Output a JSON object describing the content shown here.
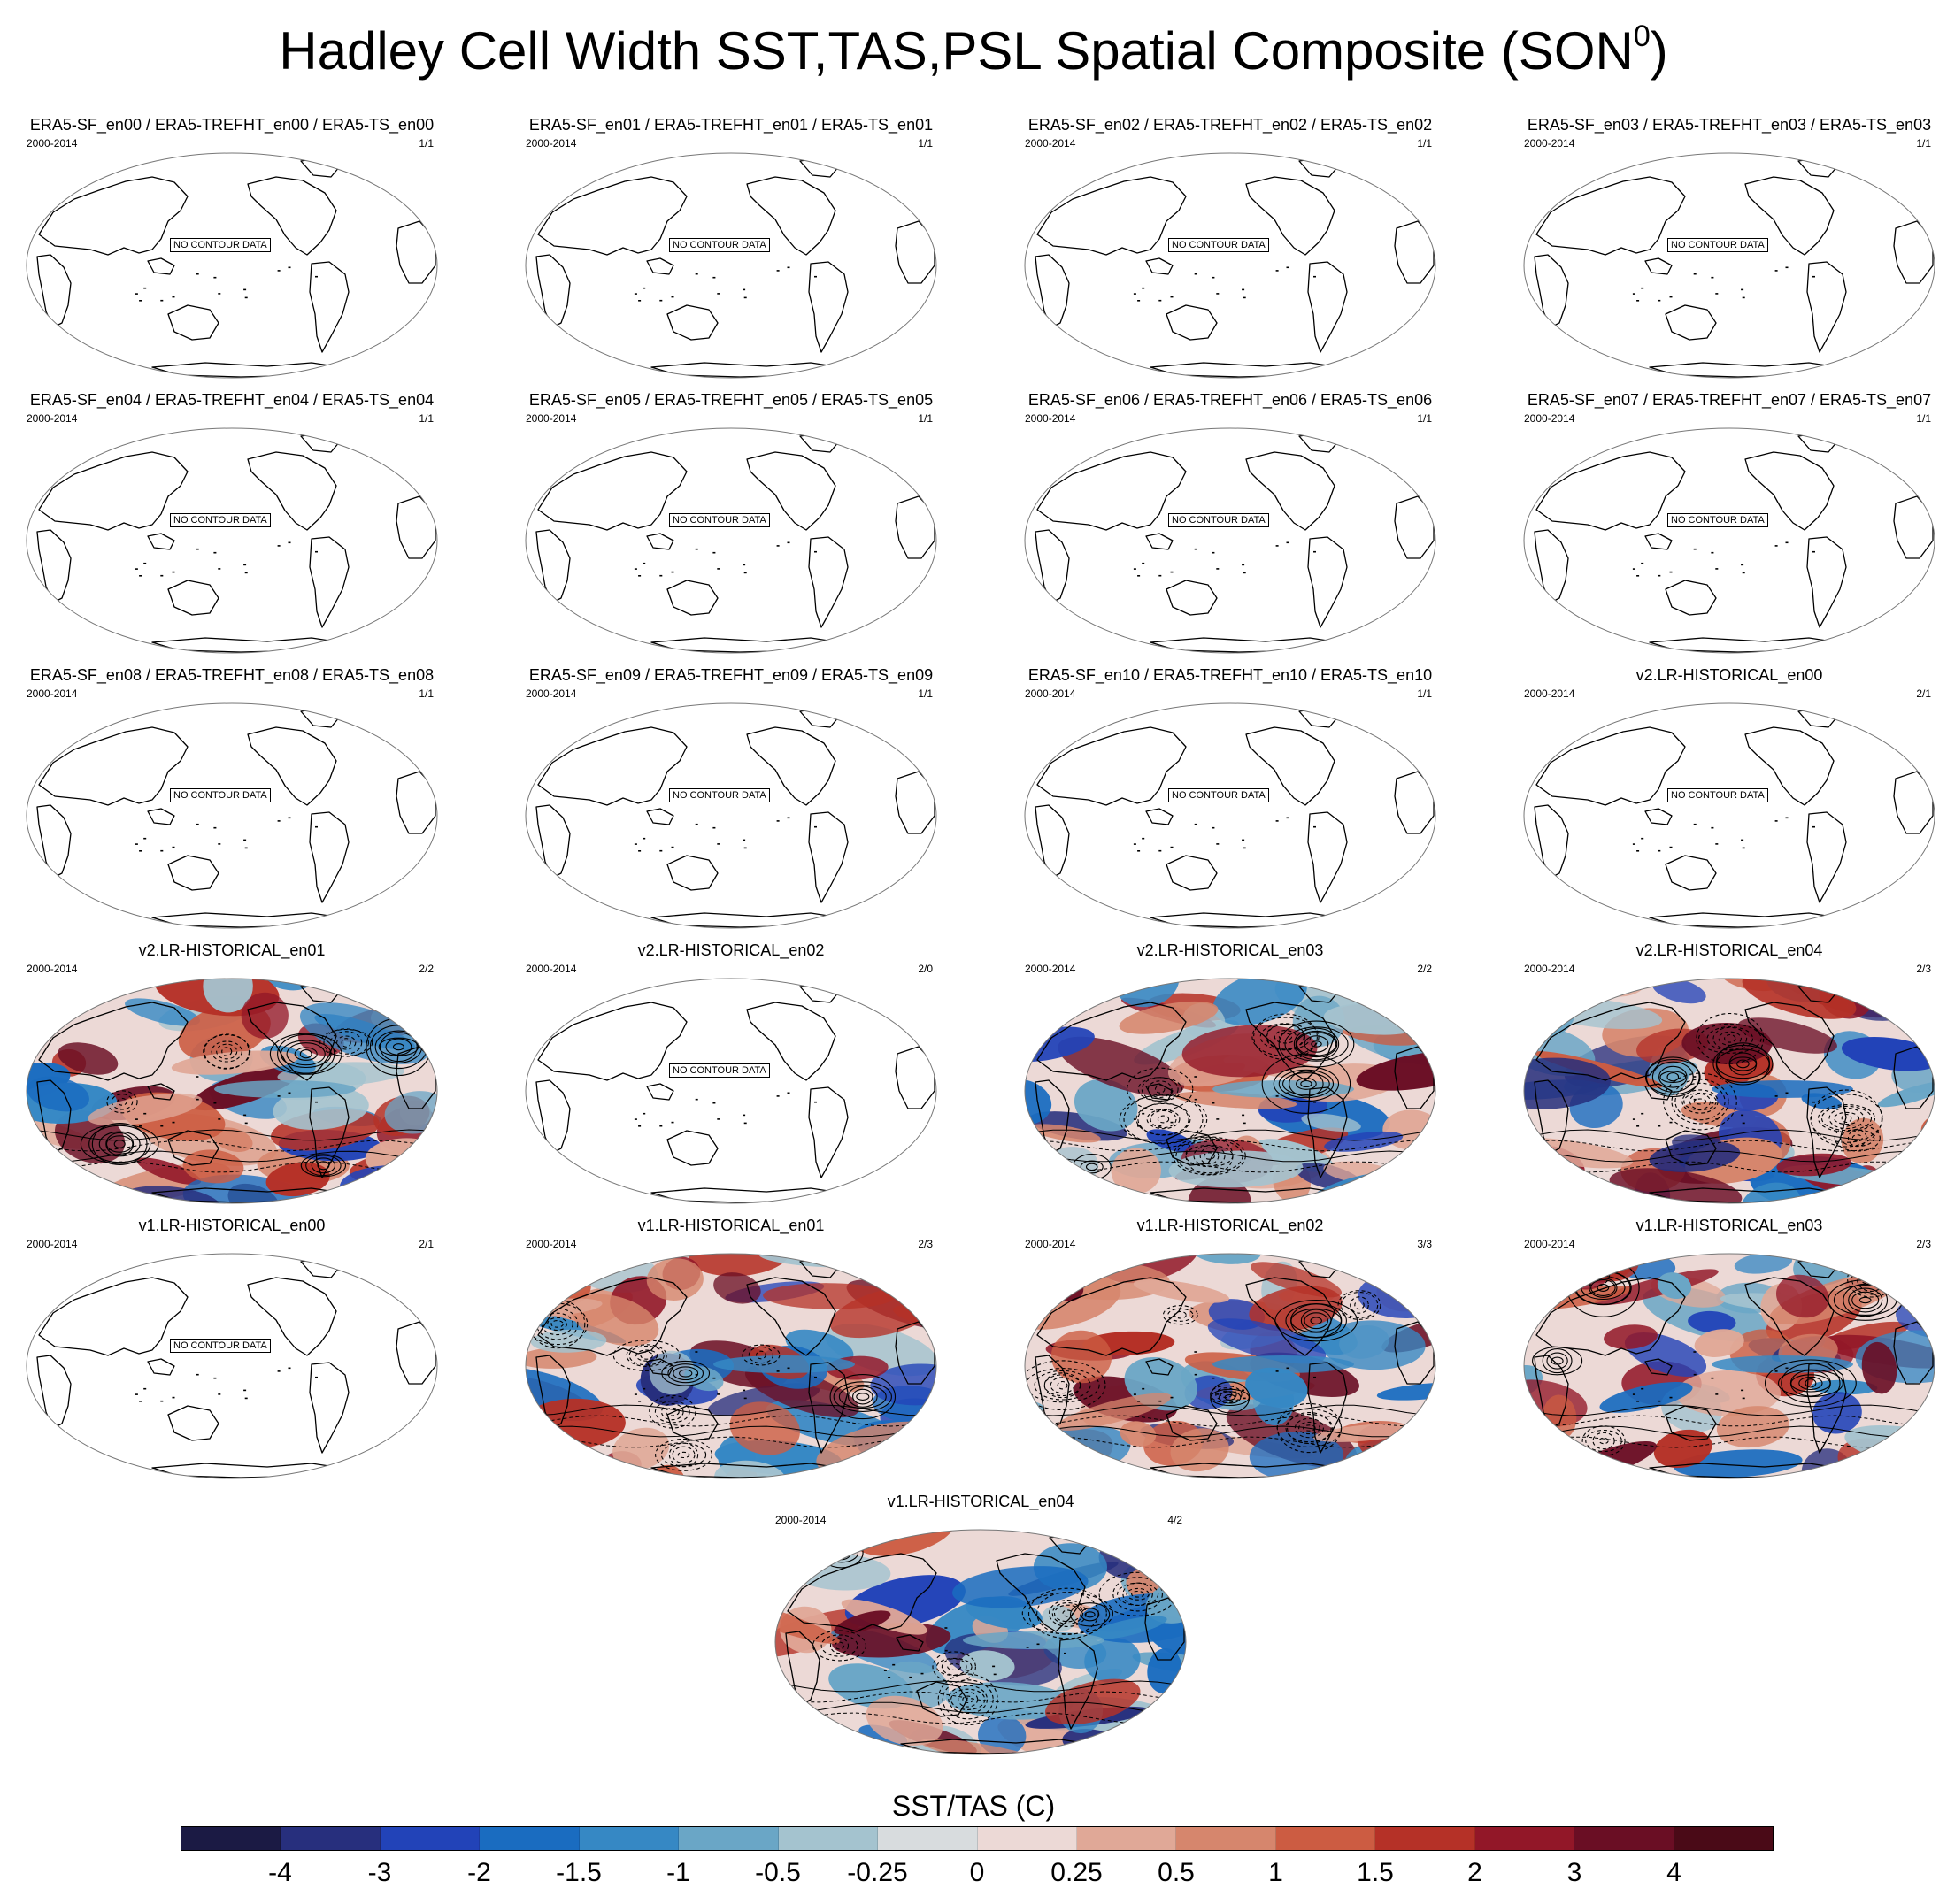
{
  "figure": {
    "title_main": "Hadley Cell Width SST,TAS,PSL Spatial Composite (SON",
    "title_sup": "0",
    "title_end": ")",
    "no_data_text": "NO CONTOUR DATA"
  },
  "chart_data": {
    "type": "heatmap",
    "projection": "global equal-area (Pacific-centered)",
    "panels": [
      {
        "title": "ERA5-SF_en00 / ERA5-TREFHT_en00 / ERA5-TS_en00",
        "period": "2000-2014",
        "ratio": "1/1",
        "has_data": false
      },
      {
        "title": "ERA5-SF_en01 / ERA5-TREFHT_en01 / ERA5-TS_en01",
        "period": "2000-2014",
        "ratio": "1/1",
        "has_data": false
      },
      {
        "title": "ERA5-SF_en02 / ERA5-TREFHT_en02 / ERA5-TS_en02",
        "period": "2000-2014",
        "ratio": "1/1",
        "has_data": false
      },
      {
        "title": "ERA5-SF_en03 / ERA5-TREFHT_en03 / ERA5-TS_en03",
        "period": "2000-2014",
        "ratio": "1/1",
        "has_data": false
      },
      {
        "title": "ERA5-SF_en04 / ERA5-TREFHT_en04 / ERA5-TS_en04",
        "period": "2000-2014",
        "ratio": "1/1",
        "has_data": false
      },
      {
        "title": "ERA5-SF_en05 / ERA5-TREFHT_en05 / ERA5-TS_en05",
        "period": "2000-2014",
        "ratio": "1/1",
        "has_data": false
      },
      {
        "title": "ERA5-SF_en06 / ERA5-TREFHT_en06 / ERA5-TS_en06",
        "period": "2000-2014",
        "ratio": "1/1",
        "has_data": false
      },
      {
        "title": "ERA5-SF_en07 / ERA5-TREFHT_en07 / ERA5-TS_en07",
        "period": "2000-2014",
        "ratio": "1/1",
        "has_data": false
      },
      {
        "title": "ERA5-SF_en08 / ERA5-TREFHT_en08 / ERA5-TS_en08",
        "period": "2000-2014",
        "ratio": "1/1",
        "has_data": false
      },
      {
        "title": "ERA5-SF_en09 / ERA5-TREFHT_en09 / ERA5-TS_en09",
        "period": "2000-2014",
        "ratio": "1/1",
        "has_data": false
      },
      {
        "title": "ERA5-SF_en10 / ERA5-TREFHT_en10 / ERA5-TS_en10",
        "period": "2000-2014",
        "ratio": "1/1",
        "has_data": false
      },
      {
        "title": "v2.LR-HISTORICAL_en00",
        "period": "2000-2014",
        "ratio": "2/1",
        "has_data": false
      },
      {
        "title": "v2.LR-HISTORICAL_en01",
        "period": "2000-2014",
        "ratio": "2/2",
        "has_data": true
      },
      {
        "title": "v2.LR-HISTORICAL_en02",
        "period": "2000-2014",
        "ratio": "2/0",
        "has_data": false
      },
      {
        "title": "v2.LR-HISTORICAL_en03",
        "period": "2000-2014",
        "ratio": "2/2",
        "has_data": true
      },
      {
        "title": "v2.LR-HISTORICAL_en04",
        "period": "2000-2014",
        "ratio": "2/3",
        "has_data": true
      },
      {
        "title": "v1.LR-HISTORICAL_en00",
        "period": "2000-2014",
        "ratio": "2/1",
        "has_data": false
      },
      {
        "title": "v1.LR-HISTORICAL_en01",
        "period": "2000-2014",
        "ratio": "2/3",
        "has_data": true
      },
      {
        "title": "v1.LR-HISTORICAL_en02",
        "period": "2000-2014",
        "ratio": "3/3",
        "has_data": true
      },
      {
        "title": "v1.LR-HISTORICAL_en03",
        "period": "2000-2014",
        "ratio": "2/3",
        "has_data": true
      },
      {
        "title": "v1.LR-HISTORICAL_en04",
        "period": "2000-2014",
        "ratio": "4/2",
        "has_data": true
      }
    ],
    "colorbar": {
      "title": "SST/TAS (C)",
      "labels": [
        "-4",
        "-3",
        "-2",
        "-1.5",
        "-1",
        "-0.5",
        "-0.25",
        "0",
        "0.25",
        "0.5",
        "1",
        "1.5",
        "2",
        "3",
        "4"
      ],
      "colors": [
        "#1b1a44",
        "#272f7d",
        "#2243b8",
        "#1a6cc0",
        "#3688c4",
        "#6aa6c6",
        "#a4c3cf",
        "#d8dcde",
        "#ecd9d6",
        "#e0a897",
        "#d6866d",
        "#cc5c42",
        "#b53127",
        "#921728",
        "#6a0e24",
        "#4a0a17"
      ]
    }
  }
}
